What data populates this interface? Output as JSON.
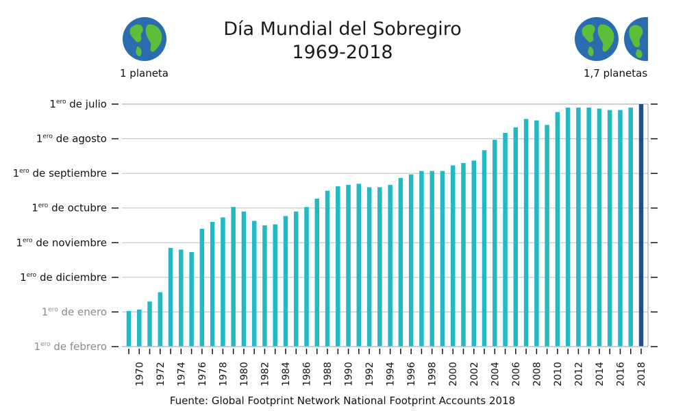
{
  "title_line1": "Día Mundial del Sobregiro",
  "title_line2": "1969-2018",
  "globe_left_label": "1 planeta",
  "globe_right_label": "1,7 planetas",
  "source": "Fuente: Global Footprint Network National Footprint Accounts 2018",
  "colors": {
    "bar": "#22b8c4",
    "bar_highlight": "#1f4e8c",
    "ocean": "#2a6cb0",
    "land": "#5cbf3a",
    "grid": "#bdbdbd",
    "tick_label_muted": "#8a8a8a"
  },
  "icons": [
    "earth-globe-icon",
    "earth-globe-icon",
    "earth-globe-icon"
  ],
  "chart_data": {
    "type": "bar",
    "title": "Día Mundial del Sobregiro 1969-2018",
    "y_axis_inverted": true,
    "y_tick_labels": [
      {
        "sup": "ero",
        "text": "de julio",
        "muted": false
      },
      {
        "sup": "ero",
        "text": "de agosto",
        "muted": false
      },
      {
        "sup": "ero",
        "text": "de septiembre",
        "muted": false
      },
      {
        "sup": "ero",
        "text": "de octubre",
        "muted": false
      },
      {
        "sup": "ero",
        "text": "de noviembre",
        "muted": false
      },
      {
        "sup": "ero",
        "text": "de diciembre",
        "muted": false
      },
      {
        "sup": "ero",
        "text": "de enero",
        "muted": true
      },
      {
        "sup": "ero",
        "text": "de febrero",
        "muted": true
      }
    ],
    "y_unit": "month-position: 0 = 1 July, 1 = 1 Aug, ... 7 = 1 Feb",
    "ylim": [
      0,
      7
    ],
    "grid": true,
    "x_tick_labels": [
      "1970",
      "1972",
      "1974",
      "1976",
      "1978",
      "1980",
      "1982",
      "1984",
      "1986",
      "1988",
      "1990",
      "1992",
      "1994",
      "1996",
      "1998",
      "2000",
      "2002",
      "2004",
      "2006",
      "2008",
      "2010",
      "2012",
      "2014",
      "2016",
      "2018"
    ],
    "years": [
      1969,
      1970,
      1971,
      1972,
      1973,
      1974,
      1975,
      1976,
      1977,
      1978,
      1979,
      1980,
      1981,
      1982,
      1983,
      1984,
      1985,
      1986,
      1987,
      1988,
      1989,
      1990,
      1991,
      1992,
      1993,
      1994,
      1995,
      1996,
      1997,
      1998,
      1999,
      2000,
      2001,
      2002,
      2003,
      2004,
      2005,
      2006,
      2007,
      2008,
      2009,
      2010,
      2011,
      2012,
      2013,
      2014,
      2015,
      2016,
      2017,
      2018
    ],
    "values": [
      5.97,
      5.93,
      5.7,
      5.43,
      4.15,
      4.2,
      4.27,
      3.6,
      3.4,
      3.27,
      2.97,
      3.1,
      3.37,
      3.5,
      3.47,
      3.23,
      3.1,
      2.97,
      2.73,
      2.5,
      2.37,
      2.33,
      2.3,
      2.4,
      2.4,
      2.33,
      2.13,
      2.03,
      1.93,
      1.93,
      1.93,
      1.77,
      1.7,
      1.63,
      1.33,
      1.03,
      0.83,
      0.67,
      0.43,
      0.47,
      0.6,
      0.23,
      0.1,
      0.1,
      0.1,
      0.13,
      0.17,
      0.17,
      0.1,
      0.0
    ],
    "highlight_year": 2018
  }
}
